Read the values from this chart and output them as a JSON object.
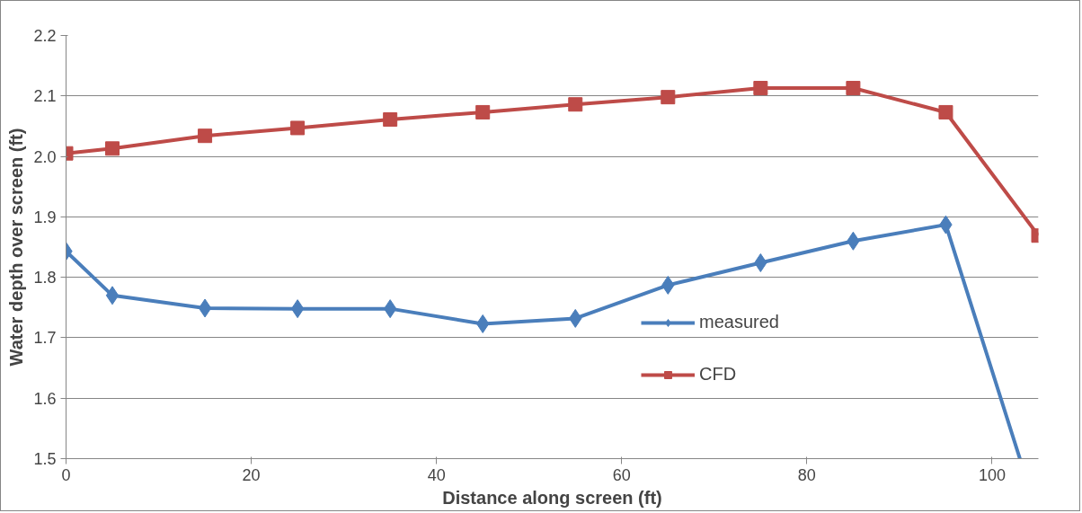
{
  "chart_data": {
    "type": "line",
    "xlabel": "Distance along screen (ft)",
    "ylabel": "Water depth over screen (ft)",
    "x": [
      0,
      5,
      15,
      25,
      35,
      45,
      55,
      65,
      75,
      85,
      95,
      105
    ],
    "series": [
      {
        "name": "measured",
        "color": "#4a7ebb",
        "marker": "diamond",
        "x": [
          0,
          5,
          15,
          25,
          35,
          45,
          55,
          65,
          75,
          85,
          95,
          103
        ],
        "values": [
          1.843,
          1.77,
          1.749,
          1.748,
          1.748,
          1.723,
          1.732,
          1.787,
          1.824,
          1.86,
          1.887,
          1.5
        ]
      },
      {
        "name": "CFD",
        "color": "#be4b48",
        "marker": "square",
        "values": [
          2.005,
          2.013,
          2.034,
          2.047,
          2.061,
          2.073,
          2.086,
          2.098,
          2.113,
          2.113,
          2.073,
          1.869
        ]
      }
    ],
    "xlim": [
      0,
      105
    ],
    "xticks": [
      0,
      20,
      40,
      60,
      80,
      100
    ],
    "ylim": [
      1.5,
      2.2
    ],
    "yticks": [
      {
        "value": 1.5,
        "label": "1.5"
      },
      {
        "value": 1.6,
        "label": "1.6"
      },
      {
        "value": 1.7,
        "label": "1.7"
      },
      {
        "value": 1.8,
        "label": "1.8"
      },
      {
        "value": 1.9,
        "label": "1.9"
      },
      {
        "value": 2.0,
        "label": "2.0"
      },
      {
        "value": 2.1,
        "label": "2.1"
      },
      {
        "value": 2.2,
        "label": "2.2"
      }
    ],
    "grid": "y",
    "legend": "right"
  }
}
